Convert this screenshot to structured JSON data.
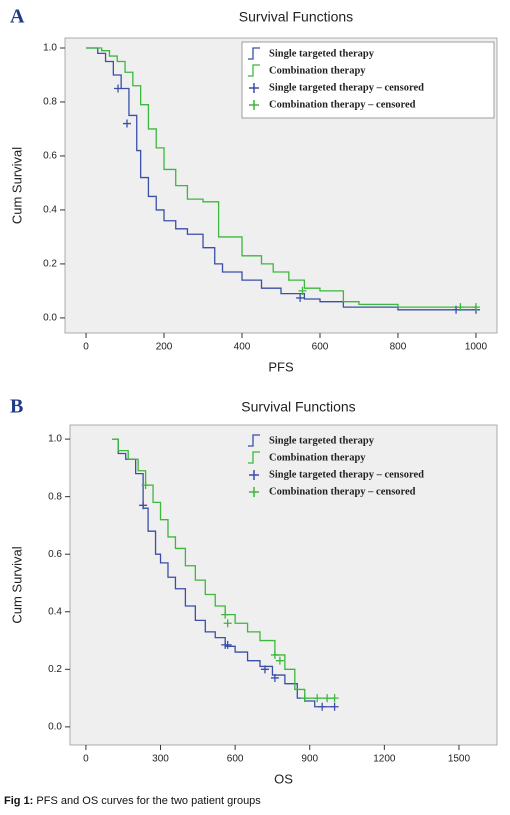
{
  "chart_data": [
    {
      "type": "step",
      "panel": "A",
      "title": "Survival Functions",
      "xlabel": "PFS",
      "ylabel": "Cum Survival",
      "xlim": [
        -54,
        1054
      ],
      "ylim": [
        -0.056,
        1.037
      ],
      "xticks": [
        0,
        200,
        400,
        600,
        800,
        1000
      ],
      "yticks": [
        {
          "value": 0,
          "label": "0.0"
        },
        0.2,
        0.4,
        0.6,
        0.8,
        {
          "value": 1,
          "label": "1.0"
        }
      ],
      "legend": "top-right",
      "legend_box": true,
      "series": [
        {
          "name": "Single targeted therapy",
          "color": "#3a4fa8",
          "x": [
            0,
            30,
            50,
            70,
            90,
            110,
            130,
            140,
            160,
            180,
            200,
            230,
            260,
            300,
            330,
            350,
            400,
            450,
            500,
            560,
            600,
            660,
            700,
            800,
            1000
          ],
          "values": [
            1.0,
            0.98,
            0.95,
            0.9,
            0.85,
            0.75,
            0.62,
            0.52,
            0.45,
            0.4,
            0.36,
            0.33,
            0.31,
            0.26,
            0.2,
            0.17,
            0.14,
            0.11,
            0.09,
            0.07,
            0.06,
            0.04,
            0.04,
            0.03,
            0.03
          ]
        },
        {
          "name": "Combination therapy",
          "color": "#3cb83c",
          "x": [
            0,
            40,
            60,
            80,
            100,
            120,
            140,
            160,
            180,
            200,
            230,
            260,
            300,
            340,
            400,
            450,
            480,
            520,
            560,
            600,
            660,
            700,
            800,
            1000
          ],
          "values": [
            1.0,
            0.99,
            0.97,
            0.95,
            0.91,
            0.86,
            0.79,
            0.7,
            0.63,
            0.55,
            0.49,
            0.44,
            0.43,
            0.3,
            0.23,
            0.2,
            0.17,
            0.14,
            0.11,
            0.1,
            0.06,
            0.05,
            0.04,
            0.04
          ]
        },
        {
          "name": "Single targeted therapy – censored",
          "color": "#3a4fa8",
          "marker": "+",
          "x": [
            82,
            105,
            549,
            949,
            1000
          ],
          "values": [
            0.85,
            0.72,
            0.074,
            0.03,
            0.03
          ]
        },
        {
          "name": "Combination therapy – censored",
          "color": "#3cb83c",
          "marker": "+",
          "x": [
            555,
            960,
            1000
          ],
          "values": [
            0.1,
            0.04,
            0.04
          ]
        }
      ]
    },
    {
      "type": "step",
      "panel": "B",
      "title": "Survival Functions",
      "xlabel": "OS",
      "ylabel": "Cum Survival",
      "xlim": [
        -64,
        1653
      ],
      "ylim": [
        -0.063,
        1.049
      ],
      "xticks": [
        0,
        300,
        600,
        900,
        1200,
        1500
      ],
      "yticks": [
        {
          "value": 0,
          "label": "0.0"
        },
        0.2,
        0.4,
        0.6,
        0.8,
        {
          "value": 1,
          "label": "1.0"
        }
      ],
      "legend": "top-right",
      "legend_box": false,
      "series": [
        {
          "name": "Single targeted therapy",
          "color": "#3a4fa8",
          "x": [
            105,
            130,
            160,
            200,
            230,
            250,
            280,
            300,
            330,
            360,
            400,
            440,
            480,
            520,
            560,
            600,
            650,
            700,
            750,
            800,
            850,
            880,
            920,
            1000
          ],
          "values": [
            1.0,
            0.95,
            0.93,
            0.88,
            0.76,
            0.68,
            0.6,
            0.57,
            0.52,
            0.48,
            0.42,
            0.37,
            0.33,
            0.31,
            0.28,
            0.26,
            0.23,
            0.21,
            0.18,
            0.15,
            0.1,
            0.09,
            0.07,
            0.07
          ]
        },
        {
          "name": "Combination therapy",
          "color": "#3cb83c",
          "x": [
            105,
            130,
            170,
            210,
            240,
            270,
            300,
            330,
            360,
            400,
            440,
            480,
            520,
            560,
            600,
            650,
            700,
            760,
            800,
            840,
            880,
            1000
          ],
          "values": [
            1.0,
            0.96,
            0.93,
            0.89,
            0.84,
            0.78,
            0.72,
            0.66,
            0.62,
            0.56,
            0.51,
            0.46,
            0.42,
            0.39,
            0.36,
            0.33,
            0.3,
            0.25,
            0.2,
            0.13,
            0.1,
            0.1
          ]
        },
        {
          "name": "Single targeted therapy – censored",
          "color": "#3a4fa8",
          "marker": "+",
          "x": [
            230,
            560,
            570,
            720,
            760,
            950,
            1000
          ],
          "values": [
            0.77,
            0.285,
            0.285,
            0.2,
            0.17,
            0.07,
            0.07
          ]
        },
        {
          "name": "Combination therapy – censored",
          "color": "#3cb83c",
          "marker": "+",
          "x": [
            240,
            560,
            570,
            760,
            780,
            880,
            930,
            970,
            1000
          ],
          "values": [
            0.84,
            0.39,
            0.36,
            0.25,
            0.23,
            0.1,
            0.1,
            0.1,
            0.1
          ]
        }
      ]
    }
  ],
  "caption": {
    "label": "Fig 1:",
    "text": "PFS and OS curves for the two patient groups"
  }
}
